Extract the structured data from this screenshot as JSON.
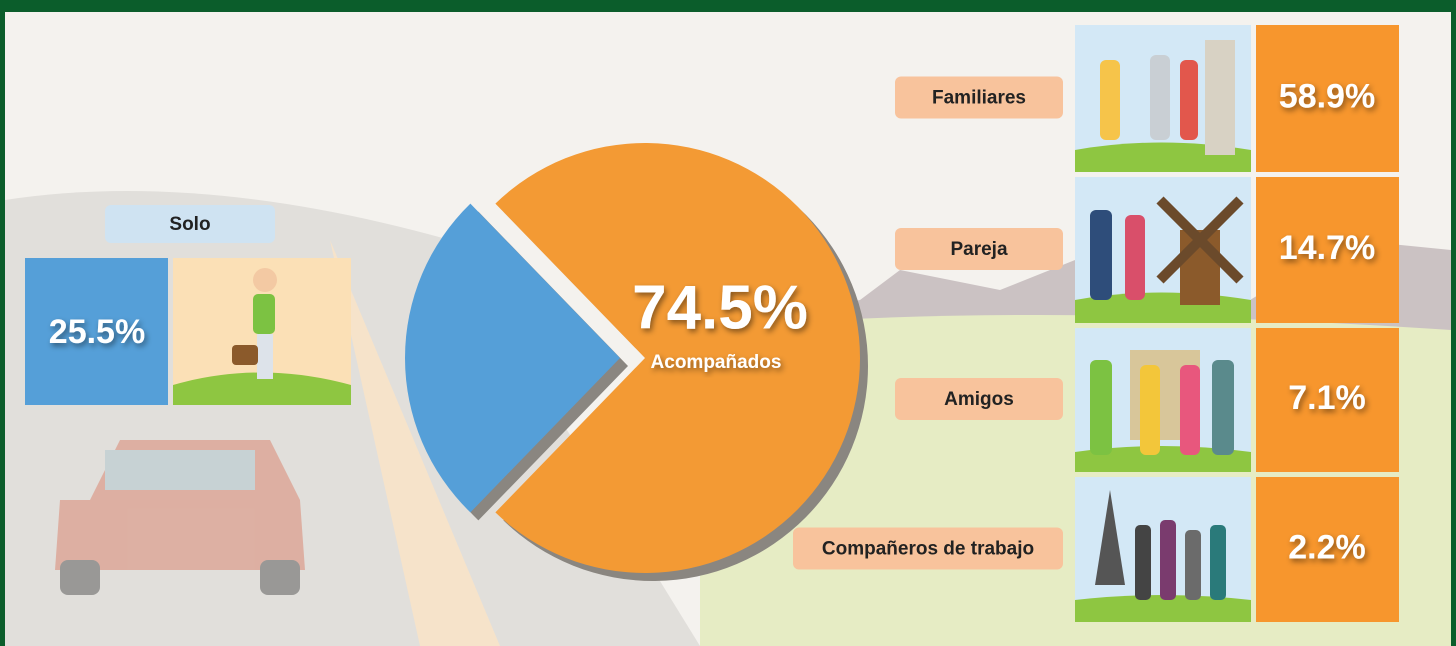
{
  "chart_data": [
    {
      "type": "pie",
      "categories": [
        "Solo",
        "Acompañados"
      ],
      "values": [
        25.5,
        74.5
      ],
      "value_labels": [
        "25.5%",
        "74.5%"
      ],
      "colors": [
        "#559fd8",
        "#f39a34"
      ]
    },
    {
      "type": "tiles",
      "categories": [
        "Familiares",
        "Pareja",
        "Amigos",
        "Compañeros de trabajo"
      ],
      "values": [
        58.9,
        14.7,
        7.1,
        2.2
      ],
      "value_labels": [
        "58.9%",
        "14.7%",
        "7.1%",
        "2.2%"
      ],
      "color": "#f7962d"
    }
  ]
}
